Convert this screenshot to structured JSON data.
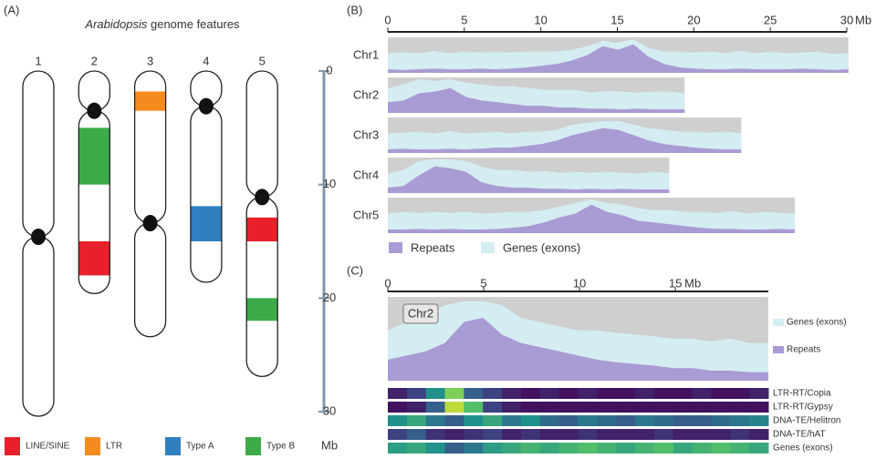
{
  "chart_data": [
    {
      "type": "ideogram",
      "panel": "(A)",
      "title_species": "Arabidopsis",
      "title_rest": "genome features",
      "ylabel": "Mb",
      "ylim": [
        0,
        30
      ],
      "yticks": [
        0,
        10,
        20,
        30
      ],
      "chromosome_color": "#ffffff",
      "centromere_color": "#111111",
      "axis_color": "#7f96aa",
      "band_types": [
        {
          "name": "LINE/SINE",
          "color": "#e8202a"
        },
        {
          "name": "LTR",
          "color": "#f58a1f"
        },
        {
          "name": "Type A",
          "color": "#2f7fc1"
        },
        {
          "name": "Type B",
          "color": "#3daa4a"
        }
      ],
      "chromosomes": [
        {
          "label": "1",
          "length": 30.4,
          "centromere": 14.6,
          "bands": []
        },
        {
          "label": "2",
          "length": 19.6,
          "centromere": 3.5,
          "bands": [
            {
              "start": 5.0,
              "end": 10.0,
              "type": 3
            },
            {
              "start": 15.0,
              "end": 18.0,
              "type": 0
            }
          ]
        },
        {
          "label": "3",
          "length": 23.4,
          "centromere": 13.4,
          "bands": [
            {
              "start": 1.8,
              "end": 3.5,
              "type": 1
            }
          ]
        },
        {
          "label": "4",
          "length": 18.6,
          "centromere": 3.1,
          "bands": [
            {
              "start": 11.9,
              "end": 15.0,
              "type": 2
            }
          ]
        },
        {
          "label": "5",
          "length": 26.9,
          "centromere": 11.1,
          "bands": [
            {
              "start": 12.9,
              "end": 15.0,
              "type": 0
            },
            {
              "start": 20.0,
              "end": 22.0,
              "type": 3
            }
          ]
        }
      ]
    },
    {
      "type": "stacked-area-rows",
      "panel": "(B)",
      "xlabel": "Mb",
      "xlim": [
        0,
        30
      ],
      "xticks": [
        0,
        5,
        10,
        15,
        20,
        25,
        30
      ],
      "background_color": "#cfcfcf",
      "series": [
        {
          "name": "Repeats",
          "color": "#a99bd4"
        },
        {
          "name": "Genes (exons)",
          "color": "#d4edf2"
        }
      ],
      "rows": [
        {
          "label": "Chr1",
          "length": 30.1,
          "values": [
            [
              0.1,
              0.08,
              0.1,
              0.12,
              0.1,
              0.1,
              0.12,
              0.1,
              0.12,
              0.15,
              0.2,
              0.25,
              0.35,
              0.5,
              0.75,
              0.65,
              0.8,
              0.45,
              0.25,
              0.15,
              0.12,
              0.1,
              0.1,
              0.12,
              0.1,
              0.1,
              0.1,
              0.12,
              0.1,
              0.08,
              0.1
            ],
            [
              0.45,
              0.5,
              0.45,
              0.5,
              0.45,
              0.5,
              0.45,
              0.5,
              0.45,
              0.45,
              0.4,
              0.35,
              0.3,
              0.25,
              0.15,
              0.2,
              0.15,
              0.25,
              0.35,
              0.45,
              0.45,
              0.5,
              0.45,
              0.5,
              0.45,
              0.5,
              0.45,
              0.45,
              0.5,
              0.45,
              0.45
            ]
          ]
        },
        {
          "label": "Chr2",
          "length": 19.4,
          "values": [
            [
              0.3,
              0.35,
              0.55,
              0.6,
              0.7,
              0.45,
              0.35,
              0.3,
              0.25,
              0.2,
              0.2,
              0.15,
              0.15,
              0.12,
              0.12,
              0.1,
              0.12,
              0.1,
              0.1,
              0.1
            ],
            [
              0.4,
              0.45,
              0.4,
              0.3,
              0.25,
              0.4,
              0.45,
              0.45,
              0.5,
              0.5,
              0.45,
              0.5,
              0.5,
              0.45,
              0.5,
              0.5,
              0.45,
              0.5,
              0.5,
              0.45
            ]
          ]
        },
        {
          "label": "Chr3",
          "length": 23.1,
          "values": [
            [
              0.1,
              0.12,
              0.1,
              0.1,
              0.12,
              0.1,
              0.12,
              0.15,
              0.15,
              0.2,
              0.25,
              0.35,
              0.5,
              0.6,
              0.7,
              0.65,
              0.5,
              0.35,
              0.25,
              0.2,
              0.15,
              0.12,
              0.1,
              0.1
            ],
            [
              0.45,
              0.45,
              0.5,
              0.45,
              0.5,
              0.45,
              0.45,
              0.45,
              0.4,
              0.4,
              0.35,
              0.3,
              0.3,
              0.25,
              0.2,
              0.25,
              0.3,
              0.35,
              0.4,
              0.4,
              0.45,
              0.45,
              0.5,
              0.45
            ]
          ]
        },
        {
          "label": "Chr4",
          "length": 18.4,
          "values": [
            [
              0.15,
              0.2,
              0.5,
              0.75,
              0.7,
              0.6,
              0.3,
              0.2,
              0.15,
              0.15,
              0.12,
              0.12,
              0.1,
              0.12,
              0.1,
              0.12,
              0.1,
              0.1,
              0.1
            ],
            [
              0.4,
              0.45,
              0.4,
              0.2,
              0.25,
              0.3,
              0.45,
              0.45,
              0.5,
              0.45,
              0.5,
              0.45,
              0.5,
              0.45,
              0.5,
              0.45,
              0.45,
              0.5,
              0.45
            ]
          ]
        },
        {
          "label": "Chr5",
          "length": 26.6,
          "values": [
            [
              0.1,
              0.1,
              0.12,
              0.1,
              0.12,
              0.1,
              0.1,
              0.12,
              0.15,
              0.2,
              0.3,
              0.45,
              0.55,
              0.8,
              0.6,
              0.5,
              0.35,
              0.3,
              0.25,
              0.2,
              0.15,
              0.12,
              0.12,
              0.1,
              0.1,
              0.12,
              0.1
            ],
            [
              0.45,
              0.5,
              0.45,
              0.5,
              0.45,
              0.5,
              0.45,
              0.45,
              0.45,
              0.4,
              0.35,
              0.3,
              0.3,
              0.15,
              0.25,
              0.3,
              0.35,
              0.35,
              0.4,
              0.4,
              0.45,
              0.45,
              0.5,
              0.45,
              0.5,
              0.45,
              0.45
            ]
          ]
        }
      ]
    },
    {
      "type": "area-heatmap",
      "panel": "(C)",
      "title": "Chr2",
      "xlabel": "Mb",
      "xlim": [
        0,
        19.85
      ],
      "xticks": [
        0,
        5,
        10,
        15
      ],
      "background_color": "#cfcfcf",
      "series": [
        {
          "name": "Repeats",
          "color": "#a99bd4",
          "values": [
            0.25,
            0.3,
            0.35,
            0.45,
            0.7,
            0.75,
            0.55,
            0.45,
            0.4,
            0.35,
            0.3,
            0.25,
            0.22,
            0.2,
            0.18,
            0.15,
            0.15,
            0.12,
            0.12,
            0.1,
            0.1
          ]
        },
        {
          "name": "Genes (exons)",
          "color": "#d4edf2",
          "values": [
            0.35,
            0.4,
            0.45,
            0.45,
            0.25,
            0.2,
            0.35,
            0.3,
            0.3,
            0.3,
            0.3,
            0.35,
            0.35,
            0.35,
            0.35,
            0.35,
            0.35,
            0.35,
            0.38,
            0.35,
            0.35
          ]
        }
      ],
      "colormap": [
        "#440154",
        "#3b528b",
        "#21918c",
        "#5ec962",
        "#fde725"
      ],
      "tracks": [
        {
          "name": "LTR-RT/Copia",
          "values": [
            0.1,
            0.2,
            0.5,
            0.8,
            0.3,
            0.2,
            0.1,
            0.05,
            0.1,
            0.05,
            0.1,
            0.05,
            0.05,
            0.1,
            0.05,
            0.05,
            0.1,
            0.05,
            0.05,
            0.1
          ]
        },
        {
          "name": "LTR-RT/Gypsy",
          "values": [
            0.05,
            0.1,
            0.3,
            0.9,
            0.7,
            0.2,
            0.1,
            0.05,
            0.05,
            0.05,
            0.05,
            0.05,
            0.05,
            0.05,
            0.05,
            0.05,
            0.05,
            0.05,
            0.05,
            0.05
          ]
        },
        {
          "name": "DNA-TE/Helitron",
          "values": [
            0.5,
            0.6,
            0.4,
            0.3,
            0.5,
            0.6,
            0.4,
            0.5,
            0.35,
            0.3,
            0.4,
            0.35,
            0.3,
            0.4,
            0.35,
            0.3,
            0.3,
            0.35,
            0.4,
            0.45
          ]
        },
        {
          "name": "DNA-TE/hAT",
          "values": [
            0.2,
            0.3,
            0.15,
            0.1,
            0.15,
            0.2,
            0.1,
            0.15,
            0.1,
            0.1,
            0.15,
            0.1,
            0.1,
            0.1,
            0.15,
            0.1,
            0.1,
            0.1,
            0.15,
            0.1
          ]
        },
        {
          "name": "Genes (exons)",
          "values": [
            0.55,
            0.6,
            0.5,
            0.3,
            0.4,
            0.55,
            0.6,
            0.65,
            0.6,
            0.65,
            0.7,
            0.65,
            0.6,
            0.65,
            0.7,
            0.6,
            0.65,
            0.7,
            0.65,
            0.6
          ]
        }
      ]
    }
  ]
}
